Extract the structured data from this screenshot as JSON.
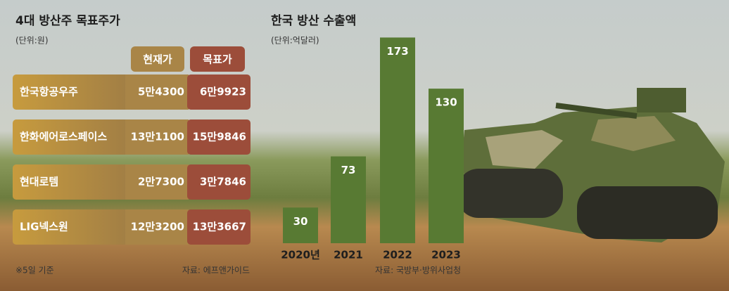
{
  "table": {
    "title": "4대 방산주 목표주가",
    "unit": "(단위:원)",
    "columns": [
      "현재가",
      "목표가"
    ],
    "rows": [
      [
        "한국항공우주",
        "5만4300",
        "6만9923"
      ],
      [
        "한화에어로스페이스",
        "13만1100",
        "15만9846"
      ],
      [
        "현대로템",
        "2만7300",
        "3만7846"
      ],
      [
        "LIG넥스원",
        "12만3200",
        "13만3667"
      ]
    ],
    "note": "※5일 기준",
    "source": "자료: 에프앤가이드"
  },
  "chart_data": {
    "type": "bar",
    "title": "한국 방산 수출액",
    "subtitle": "(단위:억달러)",
    "categories": [
      "2020년",
      "2021",
      "2022",
      "2023"
    ],
    "values": [
      30,
      73,
      173,
      130
    ],
    "color": "#587a33",
    "ylim": [
      0,
      175
    ],
    "source": "자료: 국방부·방위사업청"
  }
}
